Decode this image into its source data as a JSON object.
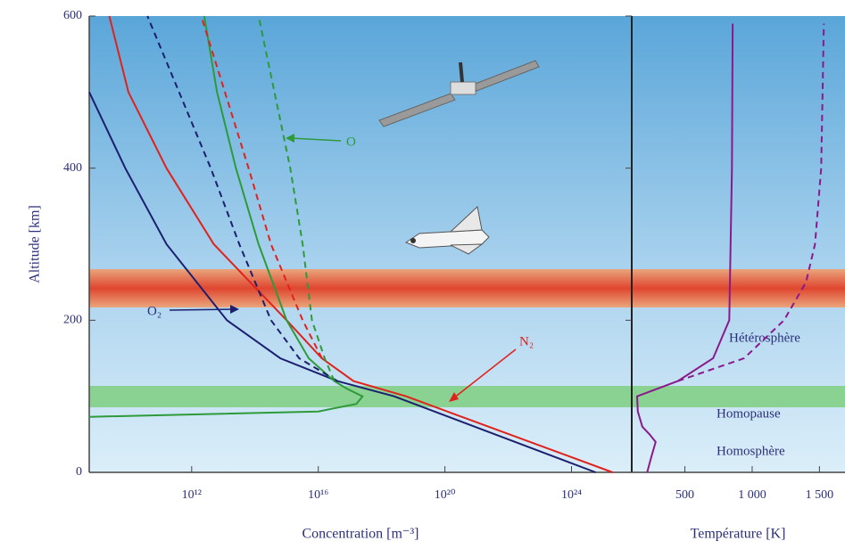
{
  "chart_data": [
    {
      "type": "line",
      "xscale": "log",
      "xlabel": "Concentration [m⁻³]",
      "ylabel": "Altitude [km]",
      "xlim": [
        580000000.0,
        8e+25
      ],
      "xticks": [
        {
          "value": 1000000000000.0,
          "label": "10¹²"
        },
        {
          "value": 1e+16,
          "label": "10¹⁶"
        },
        {
          "value": 1e+20,
          "label": "10²⁰"
        },
        {
          "value": 1e+24,
          "label": "10²⁴"
        }
      ],
      "ylim": [
        0,
        600
      ],
      "yticks": [
        0,
        200,
        400,
        600
      ],
      "series": [
        {
          "name": "N₂",
          "color": "#e0221c",
          "dash": false,
          "x": [
            2e+25,
            6e+18,
            1.3e+17,
            1.3e+16,
            1000000000000000.0,
            5000000000000.0,
            160000000000.0,
            10000000000.0,
            2500000000.0
          ],
          "values": [
            0,
            100,
            120,
            150,
            200,
            300,
            400,
            500,
            600
          ]
        },
        {
          "name": "O₂",
          "color": "#1c1f6e",
          "dash": false,
          "x": [
            5.8e+24,
            2.5e+18,
            4e+16,
            630000000000000.0,
            13000000000000.0,
            160000000000.0,
            8000000000.0,
            580000000.0
          ],
          "values": [
            0,
            100,
            120,
            150,
            200,
            300,
            400,
            500
          ]
        },
        {
          "name": "O",
          "color": "#2e9a3a",
          "dash": false,
          "x": [
            580000000.0,
            1e+16,
            1.6e+17,
            2.5e+17,
            8e+16,
            3.2e+16,
            5000000000000000.0,
            1000000000000000.0,
            130000000000000.0,
            25000000000000.0,
            6300000000000.0,
            2500000000000.0
          ],
          "values": [
            73,
            80,
            90,
            100,
            110,
            120,
            150,
            200,
            300,
            400,
            500,
            600
          ]
        },
        {
          "color": "#e0221c",
          "dash": true,
          "x": [
            1.3e+16,
            3200000000000000.0,
            320000000000000.0,
            63000000000000.0,
            2000000000000.0
          ],
          "values": [
            150,
            200,
            300,
            400,
            600
          ]
        },
        {
          "color": "#1c1f6e",
          "dash": true,
          "x": [
            4e+16,
            2500000000000000.0,
            320000000000000.0,
            32000000000000.0,
            4000000000000.0,
            40000000000.0
          ],
          "values": [
            120,
            150,
            200,
            300,
            400,
            600
          ]
        },
        {
          "color": "#2e9a3a",
          "dash": true,
          "x": [
            3.2e+16,
            1.6e+16,
            6300000000000000.0,
            3200000000000000.0,
            1300000000000000.0,
            130000000000000.0
          ],
          "values": [
            120,
            150,
            200,
            300,
            400,
            600
          ]
        }
      ],
      "annotations": [
        "O₂",
        "N₂",
        "O"
      ]
    },
    {
      "type": "line",
      "xlabel": "Température [K]",
      "xlim": [
        105,
        1690
      ],
      "xticks": [
        500,
        {
          "value": 1000,
          "label": "1 000"
        },
        {
          "value": 1500,
          "label": "1 500"
        }
      ],
      "ylim": [
        0,
        600
      ],
      "series": [
        {
          "color": "#8a1a8c",
          "dash": false,
          "x": [
            220,
            250,
            283,
            237,
            184,
            150,
            145,
            447,
            710,
            830,
            840,
            850,
            855
          ],
          "values": [
            0,
            20,
            40,
            50,
            60,
            80,
            100,
            120,
            150,
            200,
            300,
            400,
            590
          ]
        },
        {
          "color": "#8a1a8c",
          "dash": true,
          "x": [
            447,
            940,
            1237,
            1400,
            1467,
            1513,
            1533
          ],
          "values": [
            120,
            150,
            200,
            250,
            300,
            400,
            590
          ]
        }
      ],
      "annotations": [
        "Hétérosphère",
        "Homopause",
        "Homosphère"
      ]
    }
  ]
}
